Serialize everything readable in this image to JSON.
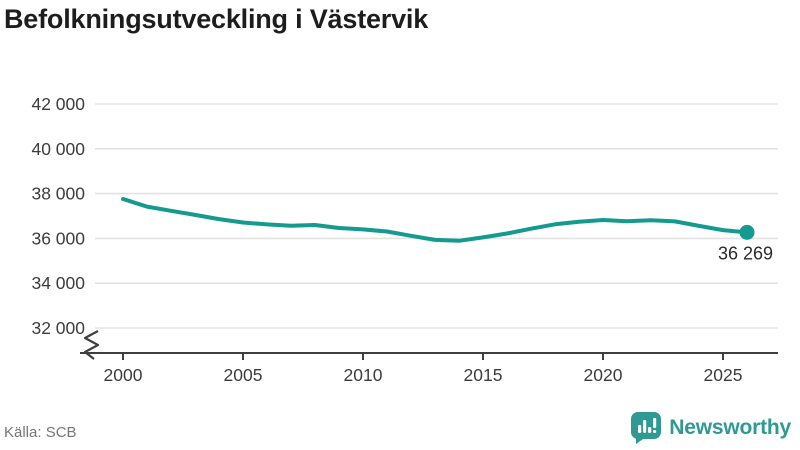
{
  "title": "Befolkningsutveckling i Västervik",
  "source": "Källa: SCB",
  "brand": {
    "name": "Newsworthy"
  },
  "colors": {
    "accent": "#149a8f",
    "brand": "#2f9a94",
    "grid": "#e3e3e3",
    "axis": "#3f3f3f",
    "text": "#1d1d1d",
    "tick": "#3c3c3c",
    "muted": "#767676"
  },
  "chart_data": {
    "type": "line",
    "title": "Befolkningsutveckling i Västervik",
    "xlabel": "",
    "ylabel": "",
    "x": [
      2000,
      2001,
      2002,
      2003,
      2004,
      2005,
      2006,
      2007,
      2008,
      2009,
      2010,
      2011,
      2012,
      2013,
      2014,
      2015,
      2016,
      2017,
      2018,
      2019,
      2020,
      2021,
      2022,
      2023,
      2024,
      2025,
      2026
    ],
    "series": [
      {
        "name": "Västervik",
        "values": [
          37758,
          37421,
          37231,
          37049,
          36861,
          36712,
          36627,
          36563,
          36597,
          36466,
          36404,
          36306,
          36118,
          35931,
          35892,
          36046,
          36218,
          36434,
          36630,
          36740,
          36820,
          36770,
          36810,
          36760,
          36560,
          36370,
          36269
        ]
      }
    ],
    "xticks": [
      2000,
      2005,
      2010,
      2015,
      2020,
      2025
    ],
    "yticks": [
      42000,
      40000,
      38000,
      36000,
      34000,
      32000
    ],
    "ytick_labels": [
      "42 000",
      "40 000",
      "38 000",
      "36 000",
      "34 000",
      "32 000"
    ],
    "ylim": [
      32000,
      42000
    ],
    "y_axis_break": true,
    "grid": "horizontal",
    "legend": "none",
    "end_dot": true,
    "end_label": "36 269"
  }
}
